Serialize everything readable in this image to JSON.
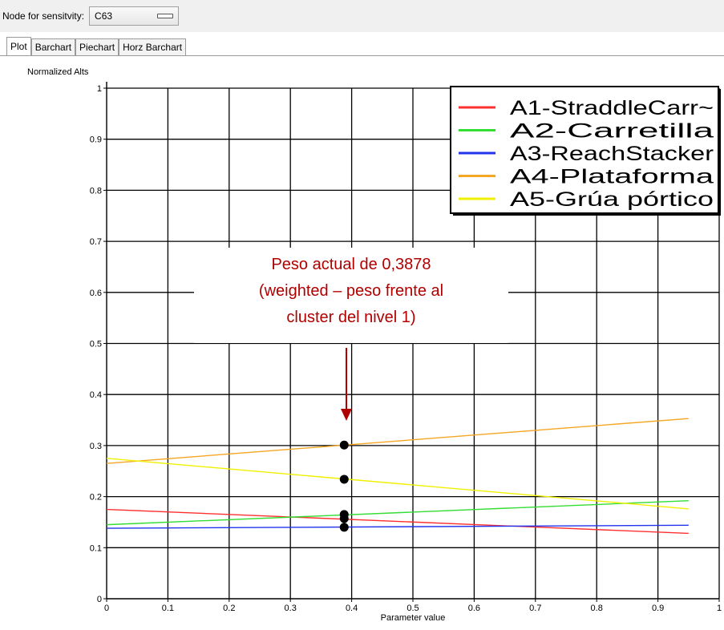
{
  "toolbar": {
    "node_label": "Node for sensitvity:",
    "node_value": "C63"
  },
  "tabs": [
    {
      "label": "Plot",
      "active": true
    },
    {
      "label": "Barchart",
      "active": false
    },
    {
      "label": "Piechart",
      "active": false
    },
    {
      "label": "Horz Barchart",
      "active": false
    }
  ],
  "annotation": {
    "lines": [
      "Peso actual de 0,3878",
      "(weighted – peso frente al",
      "cluster del nivel 1)"
    ],
    "color": "#b00000"
  },
  "chart_data": {
    "type": "line",
    "ylabel": "Normalized Alts",
    "xlabel": "Parameter value",
    "xlim": [
      0,
      1
    ],
    "ylim": [
      0,
      1
    ],
    "x_ticks": [
      "0",
      "0.1",
      "0.2",
      "0.3",
      "0.4",
      "0.5",
      "0.6",
      "0.7",
      "0.8",
      "0.9",
      "1"
    ],
    "y_ticks": [
      "0",
      "0.1",
      "0.2",
      "0.3",
      "0.4",
      "0.5",
      "0.6",
      "0.7",
      "0.8",
      "0.9",
      "1"
    ],
    "grid": true,
    "legend_position": "top-right",
    "current_x": 0.3878,
    "series": [
      {
        "name": "A1-StraddleCarr~",
        "color": "#ff3030",
        "x": [
          0,
          0.95
        ],
        "y": [
          0.175,
          0.128
        ],
        "current": 0.157
      },
      {
        "name": "A2-Carretilla",
        "color": "#33dd33",
        "x": [
          0,
          0.95
        ],
        "y": [
          0.145,
          0.192
        ],
        "current": 0.165
      },
      {
        "name": "A3-ReachStacker",
        "color": "#2233ee",
        "x": [
          0,
          0.95
        ],
        "y": [
          0.138,
          0.144
        ],
        "current": 0.14
      },
      {
        "name": "A4-Plataforma",
        "color": "#f5a623",
        "x": [
          0,
          0.95
        ],
        "y": [
          0.265,
          0.353
        ],
        "current": 0.301
      },
      {
        "name": "A5-Grúa pórtico",
        "color": "#f0f000",
        "x": [
          0,
          0.95
        ],
        "y": [
          0.275,
          0.176
        ],
        "current": 0.234
      }
    ]
  }
}
